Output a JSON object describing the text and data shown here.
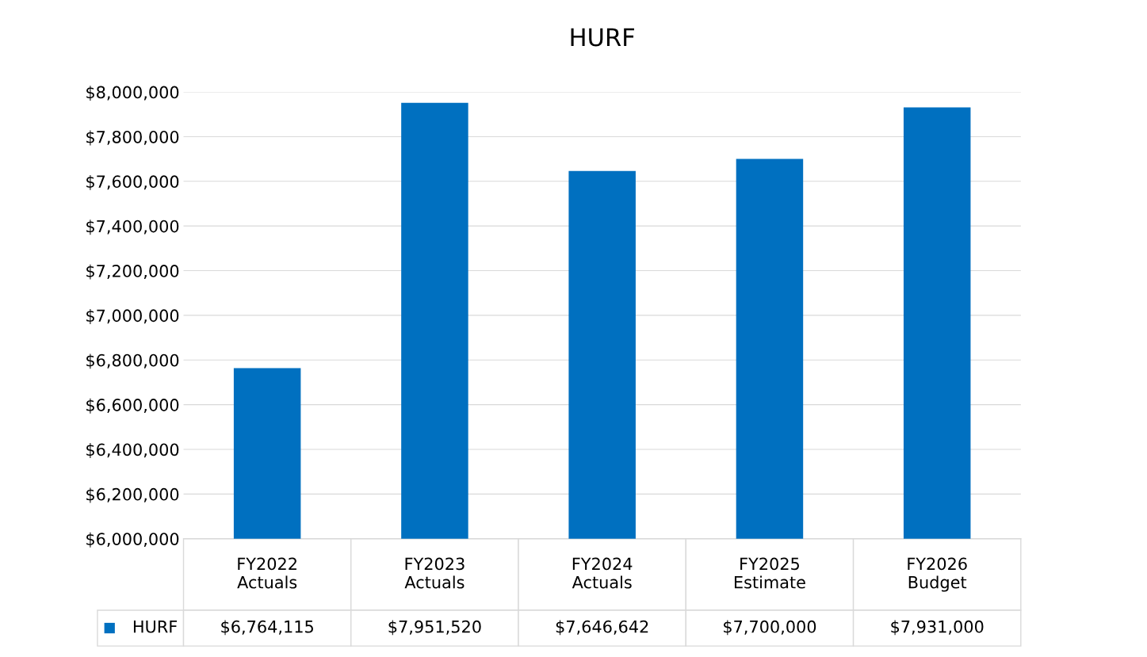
{
  "chart_data": {
    "type": "bar",
    "title": "HURF",
    "categories": [
      "FY2022\nActuals",
      "FY2023\nActuals",
      "FY2024\nActuals",
      "FY2025\nEstimate",
      "FY2026\nBudget"
    ],
    "series": [
      {
        "name": "HURF",
        "color": "#0070c0",
        "values": [
          6764115,
          7951520,
          7646642,
          7700000,
          7931000
        ],
        "value_labels": [
          "$6,764,115",
          "$7,951,520",
          "$7,646,642",
          "$7,700,000",
          "$7,931,000"
        ]
      }
    ],
    "ylim": [
      6000000,
      8000000
    ],
    "yticks": [
      {
        "value": 6000000,
        "label": "$6,000,000"
      },
      {
        "value": 6200000,
        "label": "$6,200,000"
      },
      {
        "value": 6400000,
        "label": "$6,400,000"
      },
      {
        "value": 6600000,
        "label": "$6,600,000"
      },
      {
        "value": 6800000,
        "label": "$6,800,000"
      },
      {
        "value": 7000000,
        "label": "$7,000,000"
      },
      {
        "value": 7200000,
        "label": "$7,200,000"
      },
      {
        "value": 7400000,
        "label": "$7,400,000"
      },
      {
        "value": 7600000,
        "label": "$7,600,000"
      },
      {
        "value": 7800000,
        "label": "$7,800,000"
      },
      {
        "value": 8000000,
        "label": "$8,000,000"
      }
    ],
    "grid": "y"
  }
}
